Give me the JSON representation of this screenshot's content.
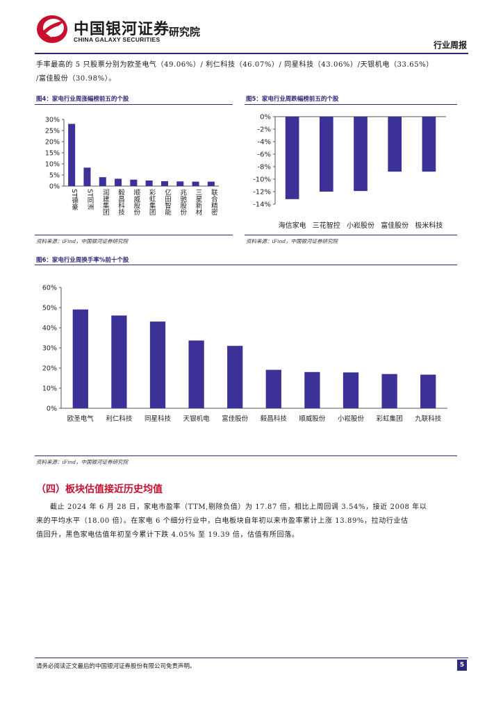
{
  "header": {
    "brand_cn": "中国银河证券",
    "brand_en": "CHINA GALAXY SECURITIES",
    "institute": "研究院",
    "report_type": "行业周报"
  },
  "colors": {
    "accent": "#2e2a7a",
    "brand_red": "#c8102e",
    "bar": "#3b3196"
  },
  "intro_lines": [
    "手率最高的 5 只股票分别为欧圣电气（49.06%）/  利仁科技（46.07%）/  同星科技（43.06%）/天银机电（33.65%）",
    "/富佳股份（30.98%）。"
  ],
  "figures": {
    "fig4": {
      "title": "图4：家电行业周涨幅榜前五的个股",
      "source": "资料来源：iFind，中国银河证券研究院"
    },
    "fig5": {
      "title": "图5：家电行业周跌幅榜前五的个股",
      "source": "资料来源：iFind，中国银河证券研究院"
    },
    "fig6": {
      "title": "图6：家电行业周换手率%前十个股",
      "source": "资料来源：iFind，中国银河证券研究院"
    }
  },
  "chart_data": [
    {
      "type": "bar",
      "title": "",
      "categories": [
        "ST德豪",
        "ST同洲",
        "润建集团",
        "毅昌科技",
        "顺威股份",
        "彩虹集团",
        "亿田智能",
        "兆驰股份",
        "三星新材",
        "联合精密"
      ],
      "values": [
        28,
        8.3,
        4,
        3.3,
        2.9,
        2.5,
        2.2,
        2.1,
        2.0,
        2.0
      ],
      "ylim": [
        0,
        30
      ],
      "yticks": [
        "0%",
        "5%",
        "10%",
        "15%",
        "20%",
        "25%",
        "30%"
      ],
      "xlabel": "",
      "ylabel": "",
      "grid": false
    },
    {
      "type": "bar",
      "title": "",
      "categories": [
        "海信家电",
        "三花智控",
        "小崧股份",
        "富佳股份",
        "极米科技"
      ],
      "values": [
        -13.2,
        -12.0,
        -11.9,
        -8.8,
        -8.8
      ],
      "ylim": [
        -14,
        0
      ],
      "yticks": [
        "0%",
        "-2%",
        "-4%",
        "-6%",
        "-8%",
        "-10%",
        "-12%",
        "-14%"
      ],
      "xlabel": "",
      "ylabel": "",
      "grid": false
    },
    {
      "type": "bar",
      "title": "",
      "categories": [
        "欧圣电气",
        "利仁科技",
        "同星科技",
        "天银机电",
        "富佳股份",
        "毅昌科技",
        "顺威股份",
        "小崧股份",
        "彩虹集团",
        "九联科技"
      ],
      "values": [
        49.06,
        46.07,
        43.06,
        33.65,
        30.98,
        19.1,
        18.0,
        17.8,
        17.0,
        16.7
      ],
      "ylim": [
        0,
        60
      ],
      "yticks": [
        "0%",
        "10%",
        "20%",
        "30%",
        "40%",
        "50%",
        "60%"
      ],
      "xlabel": "",
      "ylabel": "",
      "grid": false
    }
  ],
  "section": {
    "heading": "（四）板块估值接近历史均值",
    "body_lines": [
      "截止 2024 年 6 月 28 日，家电市盈率（TTM,剔除负值）为 17.87 倍，相比上周回调 3.54%，接近 2008 年以",
      "来的平均水平（18.00 倍）。在家电 6 个细分行业中，白电板块自年初以来市盈率累计上涨 13.89%，拉动行业估",
      "值回升，黑色家电估值年初至今累计下跌 4.05%  至 19.39 倍，估值有所回落。"
    ]
  },
  "footer": {
    "disclaimer": "请务必阅读正文最后的中国银河证券股份有限公司免责声明。",
    "page": "5"
  }
}
